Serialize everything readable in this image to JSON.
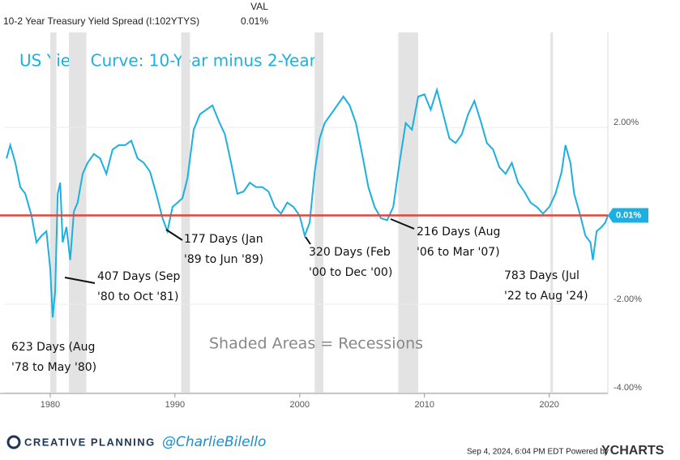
{
  "chart_data": {
    "type": "line",
    "title": "US Yield Curve: 10-Year minus 2-Year",
    "legend_header": "VAL",
    "legend_value_label": "0.01%",
    "series": [
      {
        "name": "10-2 Year Treasury Yield Spread (I:102YTYS)",
        "color": "#1cb0e2",
        "x": [
          1976.5,
          1976.8,
          1977.2,
          1977.6,
          1978.0,
          1978.5,
          1978.9,
          1979.3,
          1979.7,
          1980.0,
          1980.2,
          1980.4,
          1980.6,
          1980.8,
          1981.0,
          1981.3,
          1981.6,
          1981.9,
          1982.2,
          1982.6,
          1983.0,
          1983.5,
          1984.0,
          1984.5,
          1985.0,
          1985.5,
          1986.0,
          1986.5,
          1987.0,
          1987.5,
          1988.0,
          1988.5,
          1989.0,
          1989.4,
          1989.8,
          1990.2,
          1990.6,
          1991.0,
          1991.5,
          1992.0,
          1992.5,
          1993.0,
          1993.5,
          1994.0,
          1994.5,
          1995.0,
          1995.5,
          1996.0,
          1996.5,
          1997.0,
          1997.5,
          1998.0,
          1998.5,
          1999.0,
          1999.5,
          2000.0,
          2000.4,
          2000.8,
          2001.2,
          2001.6,
          2002.0,
          2002.5,
          2003.0,
          2003.5,
          2004.0,
          2004.5,
          2005.0,
          2005.5,
          2006.0,
          2006.5,
          2007.0,
          2007.5,
          2008.0,
          2008.5,
          2009.0,
          2009.5,
          2010.0,
          2010.5,
          2011.0,
          2011.5,
          2012.0,
          2012.5,
          2013.0,
          2013.5,
          2014.0,
          2014.5,
          2015.0,
          2015.5,
          2016.0,
          2016.5,
          2017.0,
          2017.5,
          2018.0,
          2018.5,
          2019.0,
          2019.5,
          2020.0,
          2020.5,
          2021.0,
          2021.3,
          2021.7,
          2022.0,
          2022.5,
          2022.9,
          2023.3,
          2023.5,
          2023.8,
          2024.2,
          2024.5,
          2024.7
        ],
        "values": [
          1.3,
          1.6,
          1.2,
          0.65,
          0.5,
          0,
          -0.6,
          -0.45,
          -0.35,
          -1.2,
          -2.3,
          -1.7,
          0.5,
          0.75,
          -0.6,
          -0.25,
          -1.0,
          0.1,
          0.3,
          0.95,
          1.2,
          1.4,
          1.3,
          0.95,
          1.5,
          1.6,
          1.6,
          1.7,
          1.3,
          1.2,
          1.0,
          0.5,
          -0.05,
          -0.35,
          0.2,
          0.3,
          0.4,
          0.85,
          1.95,
          2.3,
          2.4,
          2.5,
          2.15,
          1.85,
          1.2,
          0.5,
          0.55,
          0.75,
          0.65,
          0.65,
          0.55,
          0.2,
          0.05,
          0.3,
          0.2,
          0,
          -0.45,
          -0.15,
          1.0,
          1.75,
          2.1,
          2.3,
          2.5,
          2.7,
          2.5,
          2.1,
          1.4,
          0.65,
          0.2,
          -0.05,
          -0.1,
          0.2,
          1.2,
          2.1,
          1.95,
          2.7,
          2.75,
          2.4,
          2.85,
          2.3,
          1.75,
          1.65,
          1.85,
          2.3,
          2.6,
          2.15,
          1.65,
          1.5,
          1.1,
          0.95,
          1.2,
          0.75,
          0.55,
          0.3,
          0.2,
          0.05,
          0.2,
          0.5,
          1.0,
          1.6,
          1.2,
          0.5,
          0,
          -0.45,
          -0.6,
          -1.0,
          -0.35,
          -0.25,
          -0.15,
          0.01
        ]
      }
    ],
    "recessions": [
      [
        1980.0,
        1980.5
      ],
      [
        1981.5,
        1982.9
      ],
      [
        1990.5,
        1991.2
      ],
      [
        2001.2,
        2001.9
      ],
      [
        2007.9,
        2009.5
      ],
      [
        2020.1,
        2020.3
      ]
    ],
    "recession_color": "#e3e3e3",
    "reference_line": {
      "value": 0.01,
      "label": "0.01%",
      "color": "#e0473c"
    },
    "xlim": [
      1976.3,
      2024.7
    ],
    "xticks": [
      1980,
      1990,
      2000,
      2010,
      2020
    ],
    "ylim": [
      -4.02,
      4.15
    ],
    "yticks": [
      {
        "value": 2,
        "label": "2.00%"
      },
      {
        "value": -2,
        "label": "-2.00%"
      },
      {
        "value": -4,
        "label": "-4.00%"
      }
    ],
    "grid": true,
    "annotations": [
      {
        "lines": [
          "623 Days (Aug",
          "'78 to May '80)"
        ]
      },
      {
        "lines": [
          "407 Days (Sep",
          "'80 to Oct '81)"
        ]
      },
      {
        "lines": [
          "177 Days (Jan",
          "'89 to Jun '89)"
        ]
      },
      {
        "lines": [
          "320 Days (Feb",
          "'00 to Dec '00)"
        ]
      },
      {
        "lines": [
          "216 Days (Aug",
          "'06 to Mar '07)"
        ]
      },
      {
        "lines": [
          "783 Days (Jul",
          "'22 to Aug '24)"
        ]
      },
      {
        "lines": [
          "Shaded Areas = Recessions"
        ]
      }
    ],
    "footer": {
      "brand": "CREATIVE PLANNING",
      "handle": "@CharlieBilello",
      "timestamp": "Sep 4, 2024, 6:04 PM EDT Powered by",
      "source": "YCHARTS"
    }
  }
}
